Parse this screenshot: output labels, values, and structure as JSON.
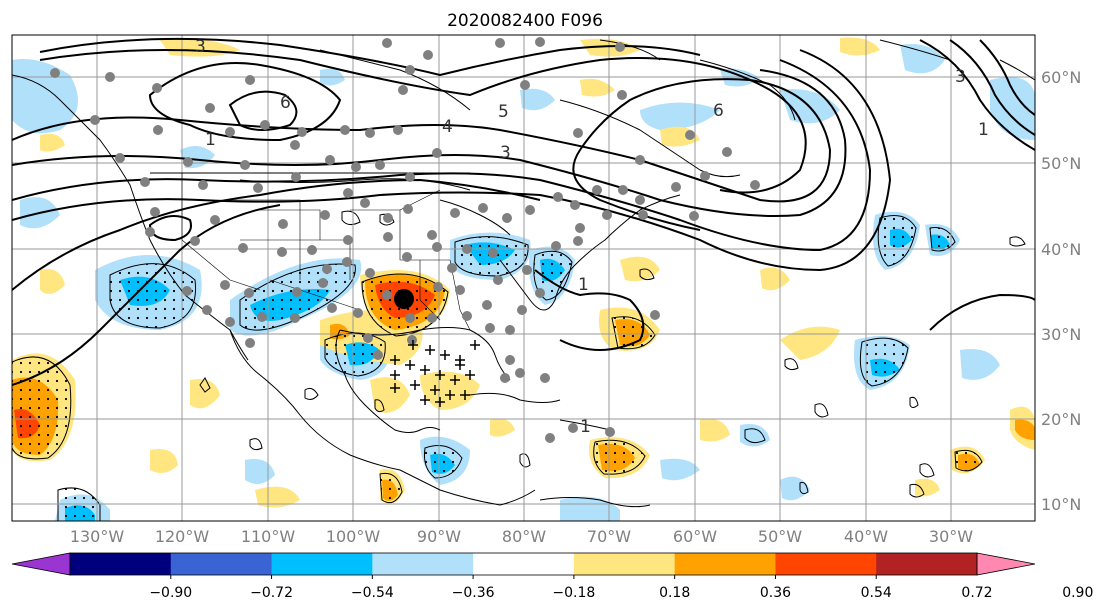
{
  "title": "2020082400 F096",
  "lon_labels": [
    "130°W",
    "120°W",
    "110°W",
    "100°W",
    "90°W",
    "80°W",
    "70°W",
    "60°W",
    "50°W",
    "40°W",
    "30°W"
  ],
  "lat_labels": [
    "60°N",
    "50°N",
    "40°N",
    "30°N",
    "20°N",
    "10°N"
  ],
  "contour_labels": [
    "3",
    "6",
    "4",
    "5",
    "3",
    "6",
    "1",
    "1",
    "1",
    "3",
    "1"
  ],
  "colorbar": {
    "tick_labels": [
      "−0.90",
      "−0.72",
      "−0.54",
      "−0.36",
      "−0.18",
      "0.18",
      "0.36",
      "0.54",
      "0.72",
      "0.90"
    ],
    "colors": [
      "#9b35d2",
      "#00007f",
      "#3a64d4",
      "#00bfff",
      "#b1e0fb",
      "#ffffff",
      "#ffe680",
      "#ffa200",
      "#ff4500",
      "#b22222",
      "#ff88b0"
    ]
  },
  "colors": {
    "light_blue": "#b1e0fb",
    "cyan": "#00bfff",
    "light_yellow": "#ffe680",
    "orange": "#ffa200",
    "red_orange": "#ff4500",
    "station_dot": "#808080",
    "grid": "#999999",
    "axis_text": "#808080"
  }
}
